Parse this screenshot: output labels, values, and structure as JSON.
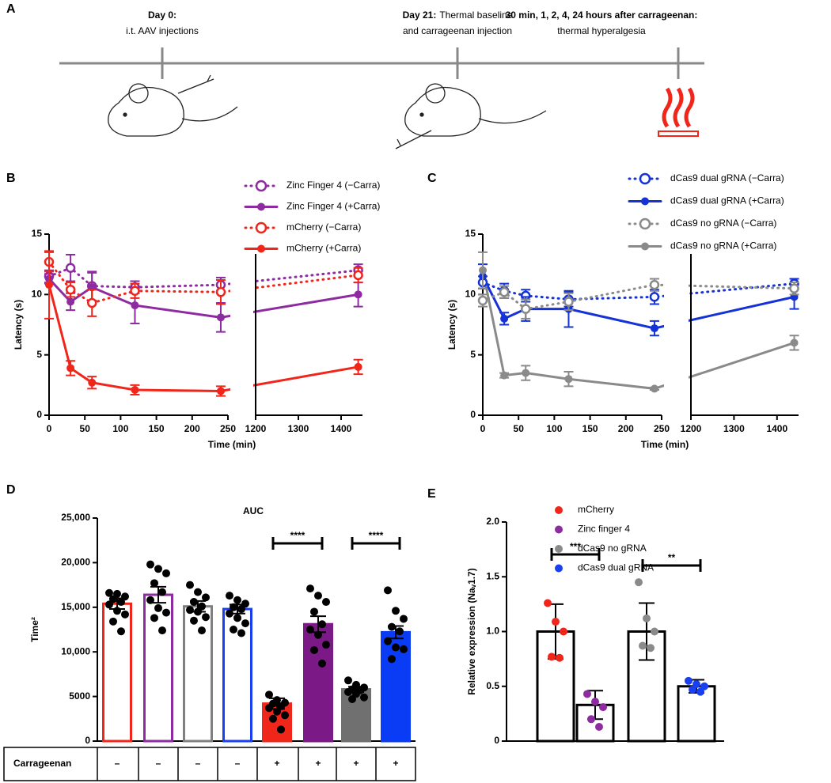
{
  "timeline": {
    "panel": "A",
    "events": [
      {
        "title": "Day 0:",
        "lines": [
          "i.t. AAV injections"
        ]
      },
      {
        "title": "Day 21:",
        "lines": [
          "Thermal baseline",
          "and carrageenan injection"
        ]
      },
      {
        "title": "30 min, 1, 2, 4, 24 hours after carrageenan:",
        "lines": [
          "thermal hyperalgesia"
        ]
      }
    ]
  },
  "chart_data": [
    {
      "type": "line",
      "panel": "B",
      "xlabel": "Time (min)",
      "ylabel": "Latency (s)",
      "x": [
        0,
        30,
        60,
        120,
        240,
        1440
      ],
      "xlim": [
        [
          0,
          250
        ],
        [
          1200,
          1450
        ]
      ],
      "xticks": [
        [
          0,
          50,
          100,
          150,
          200,
          250
        ],
        [
          1200,
          1300,
          1400
        ]
      ],
      "ylim": [
        0,
        15
      ],
      "yticks": [
        0,
        5,
        10,
        15
      ],
      "series": [
        {
          "name": "Zinc Finger 4 (−Carra)",
          "color": "#8e2ba0",
          "dashed": true,
          "marker": "open",
          "values": [
            11.5,
            12.2,
            10.7,
            10.6,
            10.8,
            12.0
          ],
          "errors": [
            0.5,
            1.1,
            1.2,
            0.5,
            0.6,
            0.5
          ]
        },
        {
          "name": "Zinc Finger 4 (+Carra)",
          "color": "#8e2ba0",
          "dashed": false,
          "marker": "filled",
          "values": [
            11.3,
            9.4,
            10.6,
            9.1,
            8.1,
            10.0
          ],
          "errors": [
            0.4,
            0.7,
            1.2,
            1.5,
            1.2,
            1.0
          ]
        },
        {
          "name": "mCherry (−Carra)",
          "color": "#f0261b",
          "dashed": true,
          "marker": "open",
          "values": [
            12.7,
            10.4,
            9.3,
            10.3,
            10.2,
            11.6
          ],
          "errors": [
            0.8,
            0.6,
            1.1,
            0.6,
            1.0,
            0.6
          ]
        },
        {
          "name": "mCherry (+Carra)",
          "color": "#f0261b",
          "dashed": false,
          "marker": "filled",
          "values": [
            10.8,
            3.9,
            2.7,
            2.1,
            2.0,
            4.0
          ],
          "errors": [
            2.8,
            0.6,
            0.5,
            0.4,
            0.4,
            0.6
          ]
        }
      ]
    },
    {
      "type": "line",
      "panel": "C",
      "xlabel": "Time (min)",
      "ylabel": "Latency (s)",
      "x": [
        0,
        30,
        60,
        120,
        240,
        1440
      ],
      "xlim": [
        [
          0,
          250
        ],
        [
          1200,
          1450
        ]
      ],
      "xticks": [
        [
          0,
          50,
          100,
          150,
          200,
          250
        ],
        [
          1200,
          1300,
          1400
        ]
      ],
      "ylim": [
        0,
        15
      ],
      "yticks": [
        0,
        5,
        10,
        15
      ],
      "series": [
        {
          "name": "dCas9 dual gRNA (−Carra)",
          "color": "#1532d6",
          "dashed": true,
          "marker": "open",
          "values": [
            11.0,
            10.3,
            9.9,
            9.6,
            9.8,
            10.9
          ],
          "errors": [
            0.5,
            0.6,
            0.5,
            0.6,
            0.6,
            0.4
          ]
        },
        {
          "name": "dCas9 dual gRNA (+Carra)",
          "color": "#1532d6",
          "dashed": false,
          "marker": "filled",
          "values": [
            11.5,
            8.0,
            8.8,
            8.8,
            7.2,
            9.8
          ],
          "errors": [
            1.0,
            0.5,
            1.0,
            1.5,
            0.6,
            1.0
          ]
        },
        {
          "name": "dCas9 no gRNA  (−Carra)",
          "color": "#8a8a8a",
          "dashed": true,
          "marker": "open",
          "values": [
            9.5,
            10.2,
            8.8,
            9.4,
            10.8,
            10.5
          ],
          "errors": [
            0.5,
            0.5,
            0.8,
            0.7,
            0.5,
            0.5
          ]
        },
        {
          "name": "dCas9 no gRNA (+Carra)",
          "color": "#8a8a8a",
          "dashed": false,
          "marker": "filled",
          "values": [
            12.0,
            3.3,
            3.5,
            3.0,
            2.2,
            6.0
          ],
          "errors": [
            1.5,
            0.2,
            0.6,
            0.6,
            0.1,
            0.6
          ]
        }
      ]
    },
    {
      "type": "bar",
      "panel": "D",
      "title": "AUC",
      "ylabel": "Time²",
      "row_label": "Carrageenan",
      "categories": [
        "–",
        "–",
        "–",
        "–",
        "+",
        "+",
        "+",
        "+"
      ],
      "colors": [
        "#f0261b",
        "#8e2ba0",
        "#808080",
        "#1a3ff0",
        "#f0261b",
        "#7b1a87",
        "#707070",
        "#0a3cf5"
      ],
      "filled": [
        false,
        false,
        false,
        false,
        true,
        true,
        true,
        true
      ],
      "values": [
        15400,
        16400,
        15100,
        14800,
        4200,
        13100,
        5800,
        12200
      ],
      "errors": [
        600,
        900,
        600,
        500,
        600,
        900,
        300,
        700
      ],
      "points": [
        [
          16600,
          16500,
          16200,
          15900,
          15600,
          15300,
          14600,
          14200,
          13400,
          12300
        ],
        [
          19800,
          19300,
          18800,
          17700,
          16700,
          15800,
          14900,
          14400,
          13800,
          12400
        ],
        [
          17500,
          16700,
          16100,
          15600,
          15100,
          14700,
          14500,
          13900,
          13500,
          12400
        ],
        [
          16300,
          15800,
          15400,
          15000,
          14800,
          14300,
          13800,
          13200,
          12500,
          12100
        ],
        [
          5200,
          4600,
          4300,
          4200,
          3900,
          3700,
          3300,
          2900,
          2500,
          1300
        ],
        [
          17100,
          16300,
          15600,
          14500,
          13100,
          12500,
          11900,
          10800,
          10200,
          8700
        ],
        [
          6800,
          6300,
          6000,
          5800,
          5700,
          5500,
          5300,
          4900,
          4700
        ],
        [
          16900,
          14600,
          13700,
          12800,
          12300,
          11200,
          10500,
          10300,
          9200
        ]
      ],
      "ylim": [
        0,
        25000
      ],
      "yticks": [
        0,
        5000,
        {
          "value": 10000,
          "label": "10,000"
        },
        {
          "value": 15000,
          "label": "15,000"
        },
        {
          "value": 20000,
          "label": "20,000"
        },
        {
          "value": 25000,
          "label": "25,000"
        }
      ],
      "annotations": [
        "****",
        "****"
      ]
    },
    {
      "type": "bar",
      "panel": "E",
      "ylabel": "Relative expression (Naᵥ1.7)",
      "categories": [
        "mCherry",
        "Zinc finger 4",
        "dCas9 no gRNA",
        "dCas9 dual gRNA"
      ],
      "colors": [
        "#f0261b",
        "#8e2ba0",
        "#8a8a8a",
        "#1a3ff0"
      ],
      "values": [
        1.0,
        0.33,
        1.0,
        0.5
      ],
      "errors": [
        0.25,
        0.13,
        0.26,
        0.06
      ],
      "points": [
        [
          1.26,
          1.09,
          1.0,
          0.77,
          0.76
        ],
        [
          0.43,
          0.36,
          0.31,
          0.2,
          0.13
        ],
        [
          1.45,
          1.12,
          1.0,
          0.87,
          0.85
        ],
        [
          0.55,
          0.52,
          0.5,
          0.47,
          0.45
        ]
      ],
      "ylim": [
        0,
        2
      ],
      "yticks": [
        0,
        0.5,
        {
          "value": 1,
          "label": "1.0"
        },
        1.5,
        {
          "value": 2,
          "label": "2.0"
        }
      ],
      "annotations": [
        "***",
        "**"
      ]
    }
  ]
}
